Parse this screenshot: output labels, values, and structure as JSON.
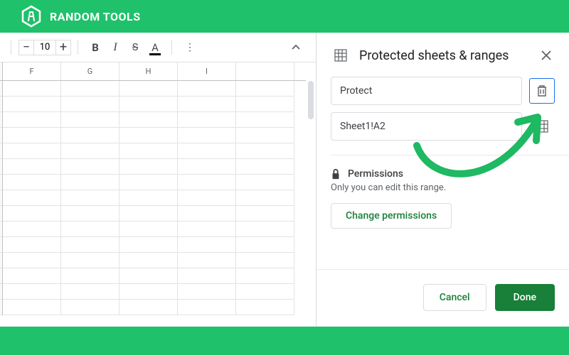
{
  "brand": {
    "name": "RANDOM TOOLS"
  },
  "colors": {
    "brand_green": "#1fc16b",
    "google_green": "#188038",
    "text_primary": "#202124",
    "text_secondary": "#5f6368",
    "border": "#dadce0",
    "focus_blue": "#1a73e8",
    "arrow": "#1fb863"
  },
  "toolbar": {
    "font_size": "10",
    "decrease": "−",
    "increase": "+",
    "bold": "B",
    "italic": "I",
    "strike": "S",
    "text_color": "A",
    "more": "⋮"
  },
  "columns": [
    "F",
    "G",
    "H",
    "I"
  ],
  "grid": {
    "visible_rows": 15
  },
  "sidebar": {
    "title": "Protected sheets & ranges",
    "description_value": "Protect",
    "range_value": "Sheet1!A2",
    "permissions": {
      "heading": "Permissions",
      "subtitle": "Only you can edit this range.",
      "change_button": "Change permissions"
    },
    "cancel": "Cancel",
    "done": "Done"
  }
}
